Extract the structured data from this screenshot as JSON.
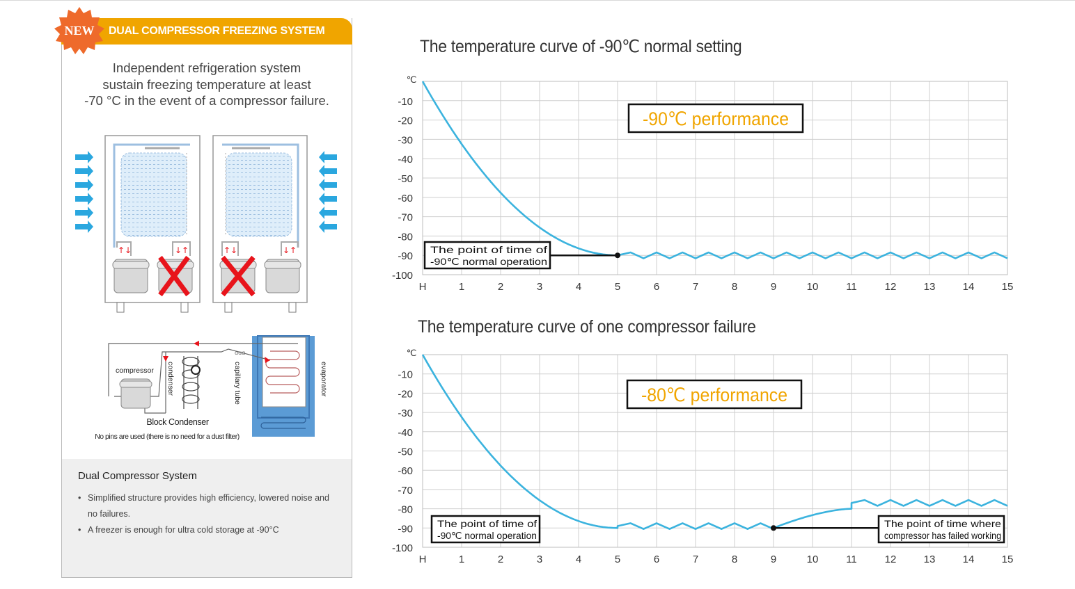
{
  "panel": {
    "badge": "NEW",
    "title": "DUAL COMPRESSOR FREEZING SYSTEM",
    "intro": [
      "Independent refrigeration system",
      "sustain freezing temperature at least",
      "-70 °C in the event of a compressor failure."
    ],
    "diagram_labels": {
      "compressor": "compressor",
      "condenser": "condenser",
      "capillary": "capillary tube",
      "evaporator": "evaporator",
      "block_caption": "Block Condenser",
      "block_sub": "No pins are used (there is no need for a dust filter)"
    },
    "system_title": "Dual Compressor System",
    "bullets": [
      "Simplified structure provides high efficiency, lowered noise and no failures.",
      "A freezer is enough for ultra cold storage at -90°C"
    ],
    "bullet_lines": [
      [
        "Simplified structure provides high efficiency, lowered noise and",
        "no failures."
      ],
      [
        "A freezer is enough for ultra cold storage at -90°C"
      ]
    ],
    "colors": {
      "accent": "#f0a500",
      "badge": "#ee6a2b",
      "arrow": "#2aa7df",
      "cross": "#e8141b",
      "evaporator": "#5b9bd5"
    }
  },
  "chart_data": [
    {
      "type": "line",
      "title": "The temperature curve  of -90℃ normal setting",
      "ylabel": "℃",
      "x_ticks": [
        "H",
        "1",
        "2",
        "3",
        "4",
        "5",
        "6",
        "7",
        "8",
        "9",
        "10",
        "11",
        "12",
        "13",
        "14",
        "15"
      ],
      "y_ticks": [
        "-10",
        "-20",
        "-30",
        "-40",
        "-50",
        "-60",
        "-70",
        "-80",
        "-90",
        "-100"
      ],
      "xlim": [
        0,
        15
      ],
      "ylim": [
        -100,
        0
      ],
      "grid": true,
      "color": "#3bb3de",
      "banner": "-90℃ performance",
      "series": [
        {
          "segments": [
            {
              "kind": "cooldown",
              "from": [
                0,
                0
              ],
              "to": [
                5,
                -90
              ]
            },
            {
              "kind": "oscillation",
              "from": 5,
              "to": 15,
              "level": -90,
              "amplitude": 3,
              "cycles": 15
            }
          ]
        }
      ],
      "annotations": [
        {
          "lines": [
            "The point of time of",
            "-90℃ normal operation"
          ],
          "x": 5,
          "y": -90
        }
      ]
    },
    {
      "type": "line",
      "title": "The temperature curve  of one compressor failure",
      "ylabel": "℃",
      "x_ticks": [
        "H",
        "1",
        "2",
        "3",
        "4",
        "5",
        "6",
        "7",
        "8",
        "9",
        "10",
        "11",
        "12",
        "13",
        "14",
        "15"
      ],
      "y_ticks": [
        "-10",
        "-20",
        "-30",
        "-40",
        "-50",
        "-60",
        "-70",
        "-80",
        "-90",
        "-100"
      ],
      "xlim": [
        0,
        15
      ],
      "ylim": [
        -100,
        0
      ],
      "grid": true,
      "color": "#3bb3de",
      "banner": "-80℃ performance",
      "series": [
        {
          "segments": [
            {
              "kind": "cooldown",
              "from": [
                0,
                0
              ],
              "to": [
                5,
                -90
              ]
            },
            {
              "kind": "oscillation",
              "from": 5,
              "to": 9,
              "level": -89,
              "amplitude": 3,
              "cycles": 6
            },
            {
              "kind": "warmup",
              "from": [
                9,
                -90
              ],
              "to": [
                11,
                -80
              ]
            },
            {
              "kind": "oscillation",
              "from": 11,
              "to": 15,
              "level": -77,
              "amplitude": 3,
              "cycles": 6
            }
          ]
        }
      ],
      "annotations": [
        {
          "lines": [
            "The point of time of",
            "-90℃ normal operation"
          ],
          "x": null,
          "y": null
        },
        {
          "lines": [
            "The point of time where",
            "compressor has failed working"
          ],
          "x": 9,
          "y": -90
        }
      ]
    }
  ]
}
